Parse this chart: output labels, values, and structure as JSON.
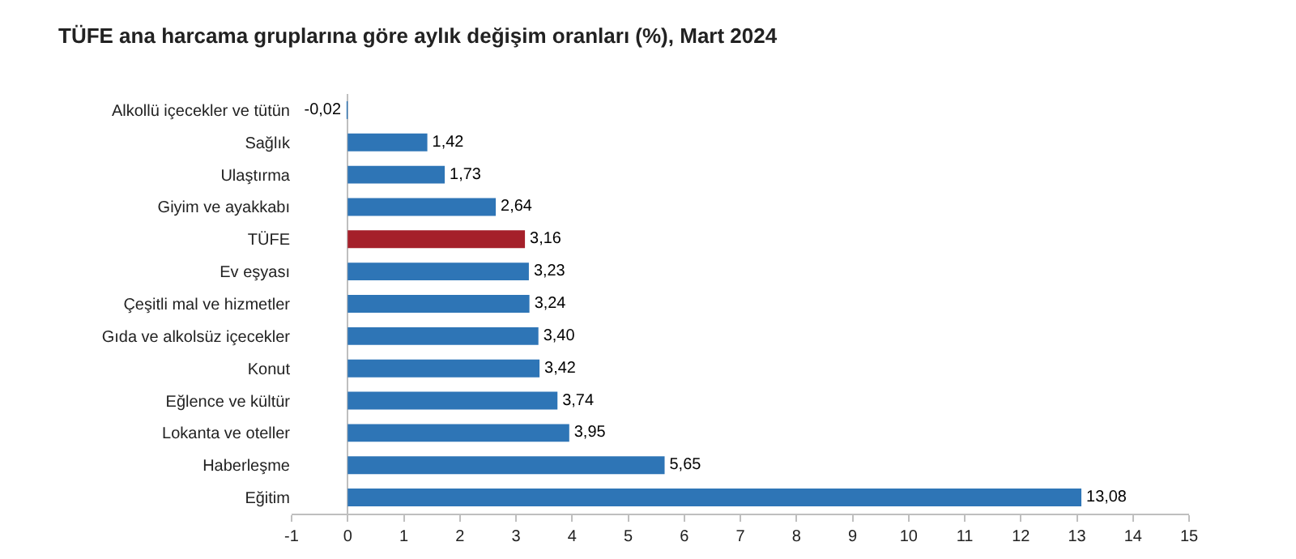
{
  "chart_data": {
    "type": "bar",
    "orientation": "horizontal",
    "title": "TÜFE ana harcama gruplarına göre aylık değişim oranları (%), Mart 2024",
    "categories": [
      "Alkollü içecekler ve tütün",
      "Sağlık",
      "Ulaştırma",
      "Giyim ve ayakkabı",
      "TÜFE",
      "Ev eşyası",
      "Çeşitli mal ve hizmetler",
      "Gıda ve alkolsüz içecekler",
      "Konut",
      "Eğlence ve kültür",
      "Lokanta ve oteller",
      "Haberleşme",
      "Eğitim"
    ],
    "values": [
      -0.02,
      1.42,
      1.73,
      2.64,
      3.16,
      3.23,
      3.24,
      3.4,
      3.42,
      3.74,
      3.95,
      5.65,
      13.08
    ],
    "colors": [
      "#2e75b6",
      "#2e75b6",
      "#2e75b6",
      "#2e75b6",
      "#a5202a",
      "#2e75b6",
      "#2e75b6",
      "#2e75b6",
      "#2e75b6",
      "#2e75b6",
      "#2e75b6",
      "#2e75b6",
      "#2e75b6"
    ],
    "value_labels": [
      "-0,02",
      "1,42",
      "1,73",
      "2,64",
      "3,16",
      "3,23",
      "3,24",
      "3,40",
      "3,42",
      "3,74",
      "3,95",
      "5,65",
      "13,08"
    ],
    "xlim": [
      -1,
      15
    ],
    "xticks": [
      -1,
      0,
      1,
      2,
      3,
      4,
      5,
      6,
      7,
      8,
      9,
      10,
      11,
      12,
      13,
      14,
      15
    ],
    "legend": false
  }
}
